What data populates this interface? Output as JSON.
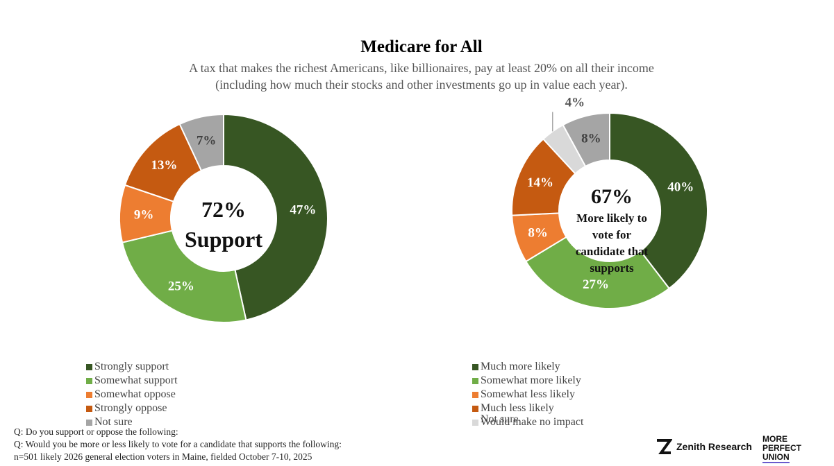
{
  "header": {
    "title": "Medicare for All",
    "subtitle_line1": "A tax that makes the richest Americans, like billionaires, pay at least 20% on all their income",
    "subtitle_line2": "(including how much their stocks and other investments go up in value each year)."
  },
  "colors": {
    "dark_green": "#375623",
    "light_green": "#70AD47",
    "light_orange": "#ED7D31",
    "dark_orange": "#C55A11",
    "gray": "#A5A5A5",
    "light_gray": "#D9D9D9"
  },
  "chart_data": [
    {
      "type": "pie",
      "subtype": "donut",
      "question": "Q: Do you support or oppose the following:",
      "center_value": "72%",
      "center_label": "Support",
      "categories": [
        "Strongly support",
        "Somewhat support",
        "Somewhat oppose",
        "Strongly oppose",
        "Not sure"
      ],
      "values": [
        47,
        25,
        9,
        13,
        7
      ],
      "labels": [
        "47%",
        "25%",
        "9%",
        "13%",
        "7%"
      ]
    },
    {
      "type": "pie",
      "subtype": "donut",
      "question": "Q: Would you be more or less likely to vote for a candidate that supports the following:",
      "center_value": "67%",
      "center_label_lines": [
        "More likely to",
        "vote for",
        "candidate that",
        "supports"
      ],
      "categories": [
        "Much more likely",
        "Somewhat more likely",
        "Somewhat less likely",
        "Much less likely",
        "Would make no impact",
        "Not sure"
      ],
      "values": [
        40,
        27,
        8,
        14,
        4,
        8
      ],
      "labels": [
        "40%",
        "27%",
        "8%",
        "14%",
        "4%",
        "8%"
      ],
      "legend_overlap_text": "Not sure"
    }
  ],
  "footer": {
    "q1": "Q: Do you support or oppose the following:",
    "q2": "Q: Would you be more or less likely to vote for a candidate that supports the following:",
    "sample": "n=501 likely 2026 general election voters in Maine, fielded October 7-10, 2025"
  },
  "logos": {
    "zenith": "Zenith Research",
    "mpu_line1": "MORE PERFECT",
    "mpu_line2": "UNION"
  }
}
